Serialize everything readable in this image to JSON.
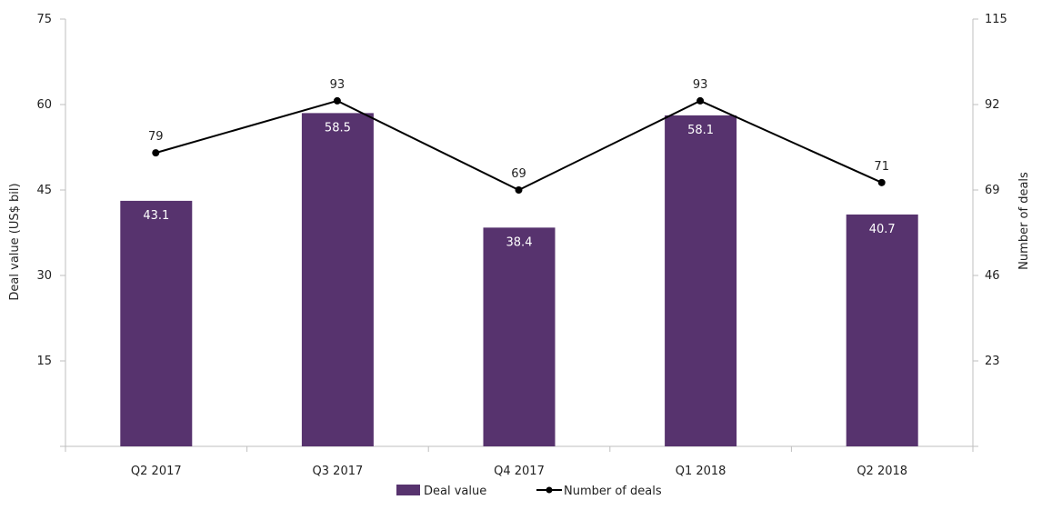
{
  "chart_data": {
    "type": "bar",
    "categories": [
      "Q2 2017",
      "Q3 2017",
      "Q4 2017",
      "Q1 2018",
      "Q2 2018"
    ],
    "series": [
      {
        "name": "Deal value",
        "kind": "bar",
        "axis": "left",
        "color": "#57336e",
        "values": [
          43.1,
          58.5,
          38.4,
          58.1,
          40.7
        ],
        "labels": [
          "43.1",
          "58.5",
          "38.4",
          "58.1",
          "40.7"
        ]
      },
      {
        "name": "Number of deals",
        "kind": "line",
        "axis": "right",
        "color": "#000000",
        "values": [
          79,
          93,
          69,
          93,
          71
        ],
        "labels": [
          "79",
          "93",
          "69",
          "93",
          "71"
        ]
      }
    ],
    "ylabel": "Deal value (US$ bil)",
    "y2label": "Number of deals",
    "ylim": [
      0,
      75
    ],
    "y2lim": [
      0,
      115
    ],
    "yticks": [
      "15",
      "30",
      "45",
      "60",
      "75"
    ],
    "yticks_values": [
      15,
      30,
      45,
      60,
      75
    ],
    "y2ticks": [
      "23",
      "46",
      "69",
      "92",
      "115"
    ],
    "y2ticks_values": [
      23,
      46,
      69,
      92,
      115
    ],
    "legend_position": "bottom",
    "grid": false
  }
}
